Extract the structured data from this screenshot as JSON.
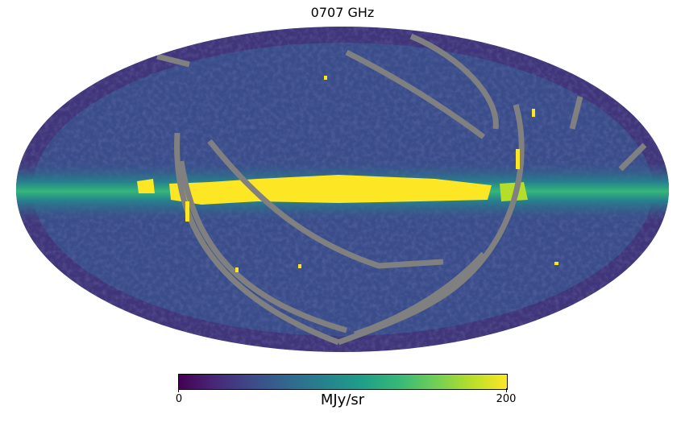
{
  "title": "0707 GHz",
  "chart_data": {
    "type": "heatmap",
    "projection": "mollweide",
    "title": "0707 GHz",
    "colormap": "viridis",
    "colorbar": {
      "min": 0,
      "max": 200,
      "unit": "MJy/sr",
      "tick_labels": [
        "0",
        "200"
      ]
    },
    "bad_value_color": "#808080",
    "description_values": {
      "galactic_plane": 200,
      "background": 40
    }
  }
}
